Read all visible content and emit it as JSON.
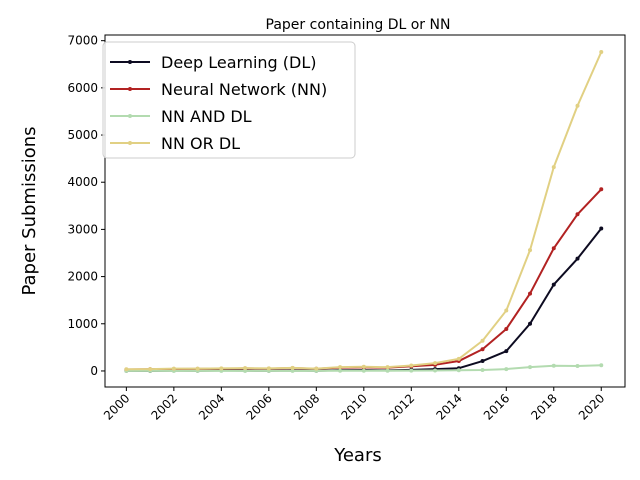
{
  "chart_data": {
    "type": "line",
    "title": "Paper containing DL or NN",
    "xlabel": "Years",
    "ylabel": "Paper Submissions",
    "x": [
      2000,
      2001,
      2002,
      2003,
      2004,
      2005,
      2006,
      2007,
      2008,
      2009,
      2010,
      2011,
      2012,
      2013,
      2014,
      2015,
      2016,
      2017,
      2018,
      2019,
      2020
    ],
    "xticks": [
      "2000",
      "2002",
      "2004",
      "2006",
      "2008",
      "2010",
      "2012",
      "2014",
      "2016",
      "2018",
      "2020"
    ],
    "yticks": [
      "0",
      "1000",
      "2000",
      "3000",
      "4000",
      "5000",
      "6000",
      "7000"
    ],
    "xlim": [
      1999.1,
      2021.0
    ],
    "ylim": [
      -340,
      7120
    ],
    "legend_position": "upper-left",
    "grid": false,
    "series": [
      {
        "name": "Deep Learning (DL)",
        "color": "#0d0b21",
        "values": [
          5,
          3,
          8,
          5,
          10,
          6,
          4,
          10,
          4,
          16,
          18,
          12,
          22,
          38,
          58,
          210,
          420,
          1000,
          1830,
          2380,
          3020
        ]
      },
      {
        "name": "Neural Network (NN)",
        "color": "#b22222",
        "values": [
          30,
          35,
          42,
          45,
          48,
          55,
          50,
          60,
          48,
          70,
          75,
          70,
          100,
          130,
          210,
          460,
          890,
          1640,
          2600,
          3320,
          3850
        ]
      },
      {
        "name": "NN AND DL",
        "color": "#b3dbb0",
        "values": [
          2,
          1,
          2,
          1,
          2,
          2,
          1,
          3,
          2,
          4,
          5,
          4,
          6,
          10,
          14,
          20,
          40,
          80,
          110,
          105,
          120
        ]
      },
      {
        "name": "NN OR DL",
        "color": "#e1d083",
        "values": [
          35,
          38,
          50,
          50,
          55,
          60,
          55,
          65,
          50,
          80,
          88,
          80,
          115,
          165,
          255,
          640,
          1280,
          2560,
          4320,
          5620,
          6760
        ]
      }
    ]
  }
}
